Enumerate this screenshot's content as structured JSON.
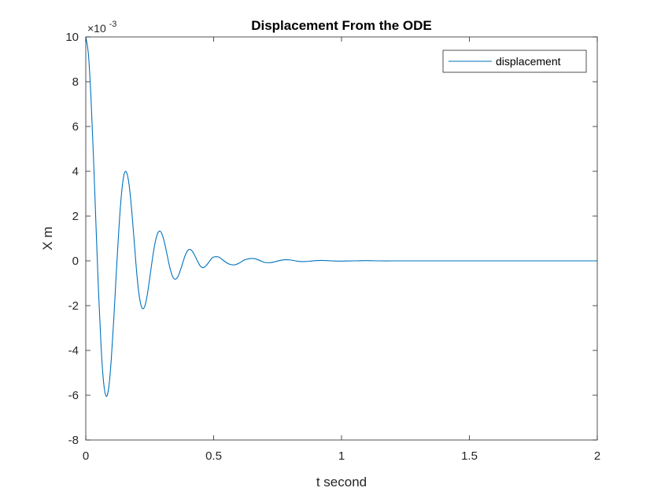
{
  "chart_data": {
    "type": "line",
    "title": "Displacement From the ODE",
    "xlabel": "t second",
    "ylabel": "X m",
    "xlim": [
      0,
      2
    ],
    "ylim": [
      -8,
      10
    ],
    "y_multiplier_base": "×10",
    "y_multiplier_exponent": "-3",
    "xticks": [
      0,
      0.5,
      1,
      1.5,
      2
    ],
    "xtick_labels": [
      "0",
      "0.5",
      "1",
      "1.5",
      "2"
    ],
    "yticks": [
      -8,
      -6,
      -4,
      -2,
      0,
      2,
      4,
      6,
      8,
      10
    ],
    "ytick_labels": [
      "-8",
      "-6",
      "-4",
      "-2",
      "0",
      "2",
      "4",
      "6",
      "8",
      "10"
    ],
    "grid": false,
    "legend": {
      "position": "top-right",
      "entries": [
        "displacement"
      ]
    },
    "line_color": "#0072BD",
    "series": [
      {
        "name": "displacement",
        "x": [
          0,
          0.01,
          0.02,
          0.03,
          0.04,
          0.05,
          0.06,
          0.07,
          0.08,
          0.09,
          0.1,
          0.11,
          0.12,
          0.13,
          0.14,
          0.15,
          0.16,
          0.17,
          0.18,
          0.19,
          0.2,
          0.21,
          0.22,
          0.23,
          0.24,
          0.25,
          0.26,
          0.27,
          0.28,
          0.29,
          0.3,
          0.31,
          0.32,
          0.33,
          0.34,
          0.35,
          0.36,
          0.37,
          0.38,
          0.39,
          0.4,
          0.41,
          0.42,
          0.43,
          0.44,
          0.45,
          0.46,
          0.47,
          0.48,
          0.49,
          0.5,
          0.52,
          0.54,
          0.56,
          0.58,
          0.6,
          0.62,
          0.64,
          0.66,
          0.68,
          0.7,
          0.72,
          0.74,
          0.76,
          0.78,
          0.8,
          0.82,
          0.84,
          0.86,
          0.88,
          0.9,
          0.92,
          0.94,
          0.96,
          0.98,
          1.0,
          1.05,
          1.1,
          1.15,
          1.2,
          1.25,
          1.3,
          1.4,
          1.5,
          1.6,
          1.7,
          1.8,
          1.9,
          2.0
        ],
        "y": [
          10.0,
          9.28,
          7.37,
          4.65,
          1.58,
          -1.41,
          -3.86,
          -5.46,
          -6.05,
          -5.64,
          -4.35,
          -2.5,
          -0.41,
          1.53,
          3.03,
          3.87,
          3.94,
          3.34,
          2.2,
          0.78,
          -0.63,
          -1.64,
          -2.1,
          -2.05,
          -1.55,
          -0.78,
          0.04,
          0.75,
          1.2,
          1.33,
          1.14,
          0.7,
          0.16,
          -0.36,
          -0.71,
          -0.82,
          -0.71,
          -0.42,
          -0.06,
          0.28,
          0.48,
          0.5,
          0.37,
          0.15,
          -0.08,
          -0.26,
          -0.3,
          -0.22,
          -0.08,
          0.08,
          0.17,
          0.17,
          0.0,
          -0.14,
          -0.18,
          -0.1,
          0.04,
          0.1,
          0.1,
          0.02,
          -0.07,
          -0.08,
          -0.04,
          0.02,
          0.05,
          0.04,
          0.0,
          -0.03,
          -0.03,
          -0.01,
          0.01,
          0.02,
          0.01,
          0.0,
          -0.01,
          -0.01,
          0.0,
          0.01,
          0.0,
          0.0,
          0.0,
          0.0,
          0.0,
          0.0,
          0.0,
          0.0,
          0.0,
          0.0,
          0.0
        ]
      }
    ]
  }
}
